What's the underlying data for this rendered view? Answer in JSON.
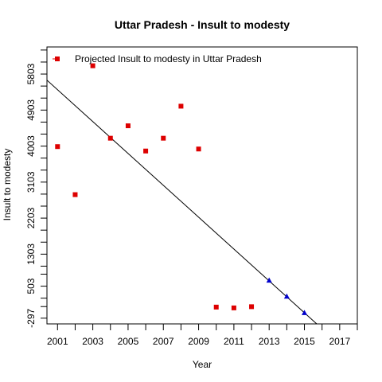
{
  "chart_data": {
    "type": "scatter",
    "title": "Uttar Pradesh  -  Insult to modesty",
    "xlabel": "Year",
    "ylabel": "Insult to modesty",
    "xlim": [
      2000.4,
      2018.0
    ],
    "ylim": [
      -440,
      6480
    ],
    "x_ticks": [
      2001,
      2003,
      2005,
      2007,
      2009,
      2011,
      2013,
      2015,
      2017
    ],
    "x_ticks_minor": [
      2002,
      2004,
      2006,
      2008,
      2010,
      2012,
      2014,
      2016,
      2018
    ],
    "y_ticks": [
      -297,
      503,
      1303,
      2203,
      3103,
      4003,
      4903,
      5803
    ],
    "y_ticks_minor": [
      -7,
      203,
      803,
      1003,
      1603,
      1903,
      2503,
      2803,
      3403,
      3703,
      4303,
      4603,
      5203,
      5503,
      6103,
      6403
    ],
    "grid": false,
    "legend": {
      "position": "top-left",
      "entries": [
        {
          "label": "Projected  Insult to modesty  in  Uttar Pradesh",
          "color": "#dd0000"
        }
      ]
    },
    "series": [
      {
        "name": "Projected  Insult to modesty  in  Uttar Pradesh",
        "marker": "square",
        "color": "#dd0000",
        "x": [
          2001,
          2002,
          2003,
          2004,
          2005,
          2006,
          2007,
          2008,
          2009,
          2010,
          2011,
          2012
        ],
        "y": [
          3990,
          2790,
          6010,
          4200,
          4510,
          3880,
          4200,
          5000,
          3930,
          -20,
          -40,
          -10
        ]
      },
      {
        "marker": "triangle",
        "color": "#0000cc",
        "x": [
          2013,
          2014,
          2015,
          2016
        ],
        "y": [
          650,
          250,
          -160,
          -560
        ]
      }
    ],
    "trend_line": {
      "color": "#000000",
      "x": [
        2000.4,
        2016.2
      ],
      "y": [
        5650,
        -640
      ]
    }
  }
}
